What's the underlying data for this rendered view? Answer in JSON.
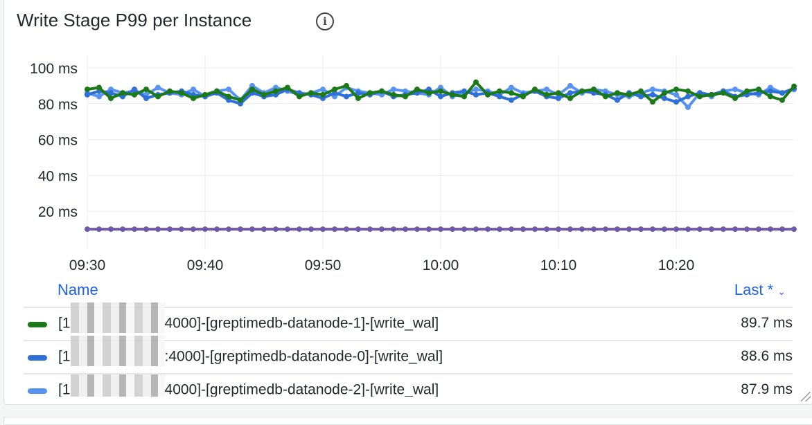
{
  "panel": {
    "title": "Write Stage P99 per Instance",
    "info_icon": "info-circle-icon"
  },
  "legend": {
    "name_header": "Name",
    "value_header": "Last *",
    "sort_icon": "chevron-down-icon",
    "rows": [
      {
        "prefix": "[1",
        "suffix": "4000]-[greptimedb-datanode-1]-[write_wal]",
        "last": "89.7 ms",
        "color": "#1b7a17"
      },
      {
        "prefix": "[1",
        "suffix": ":4000]-[greptimedb-datanode-0]-[write_wal]",
        "last": "88.6 ms",
        "color": "#2f6fd8"
      },
      {
        "prefix": "[1",
        "suffix": "4000]-[greptimedb-datanode-2]-[write_wal]",
        "last": "87.9 ms",
        "color": "#5794f2"
      }
    ]
  },
  "chart_data": {
    "type": "scatter",
    "ylim": [
      0,
      100
    ],
    "xlim": [
      "09:30",
      "10:30"
    ],
    "grid": true,
    "yticks": [
      "100 ms",
      "80 ms",
      "60 ms",
      "40 ms",
      "20 ms"
    ],
    "ytick_values": [
      100,
      80,
      60,
      40,
      20
    ],
    "xticks": [
      "09:30",
      "09:40",
      "09:50",
      "10:00",
      "10:10",
      "10:20"
    ],
    "x_minutes": [
      0,
      1,
      2,
      3,
      4,
      5,
      6,
      7,
      8,
      9,
      10,
      11,
      12,
      13,
      14,
      15,
      16,
      17,
      18,
      19,
      20,
      21,
      22,
      23,
      24,
      25,
      26,
      27,
      28,
      29,
      30,
      31,
      32,
      33,
      34,
      35,
      36,
      37,
      38,
      39,
      40,
      41,
      42,
      43,
      44,
      45,
      46,
      47,
      48,
      49,
      50,
      51,
      52,
      53,
      54,
      55,
      56,
      57,
      58,
      59,
      60
    ],
    "series": [
      {
        "color": "#1b7a17",
        "values": [
          88,
          89,
          83,
          86,
          85,
          88,
          84,
          87,
          86,
          83,
          85,
          87,
          84,
          82,
          88,
          85,
          87,
          89,
          84,
          86,
          85,
          88,
          90,
          83,
          86,
          87,
          85,
          84,
          88,
          86,
          87,
          85,
          84,
          92,
          85,
          87,
          86,
          84,
          88,
          85,
          86,
          83,
          87,
          88,
          84,
          86,
          85,
          87,
          81,
          86,
          88,
          87,
          84,
          85,
          86,
          83,
          87,
          88,
          84,
          82,
          89.7
        ]
      },
      {
        "color": "#2f6fd8",
        "values": [
          85,
          87,
          86,
          84,
          88,
          83,
          85,
          86,
          87,
          85,
          84,
          86,
          82,
          80,
          86,
          84,
          85,
          88,
          86,
          85,
          83,
          86,
          84,
          86,
          85,
          87,
          84,
          85,
          86,
          88,
          84,
          86,
          87,
          85,
          86,
          84,
          82,
          85,
          87,
          84,
          83,
          86,
          87,
          86,
          85,
          82,
          86,
          84,
          85,
          83,
          81,
          84,
          86,
          85,
          87,
          84,
          85,
          86,
          87,
          86,
          88.6
        ]
      },
      {
        "color": "#5794f2",
        "values": [
          86,
          84,
          88,
          86,
          87,
          85,
          89,
          86,
          85,
          88,
          84,
          87,
          88,
          82,
          90,
          86,
          89,
          87,
          85,
          86,
          88,
          84,
          89,
          87,
          86,
          85,
          88,
          87,
          86,
          85,
          89,
          84,
          86,
          88,
          87,
          85,
          89,
          86,
          87,
          88,
          85,
          90,
          86,
          88,
          87,
          85,
          84,
          86,
          88,
          87,
          85,
          78,
          86,
          84,
          87,
          88,
          86,
          85,
          89,
          86,
          87.9
        ]
      },
      {
        "color": "#6e5aa8",
        "values": [
          10,
          10,
          10,
          10,
          10,
          10,
          10,
          10,
          10,
          10,
          10,
          10,
          10,
          10,
          10,
          10,
          10,
          10,
          10,
          10,
          10,
          10,
          10,
          10,
          10,
          10,
          10,
          10,
          10,
          10,
          10,
          10,
          10,
          10,
          10,
          10,
          10,
          10,
          10,
          10,
          10,
          10,
          10,
          10,
          10,
          10,
          10,
          10,
          10,
          10,
          10,
          10,
          10,
          10,
          10,
          10,
          10,
          10,
          10,
          10,
          10
        ]
      }
    ]
  }
}
